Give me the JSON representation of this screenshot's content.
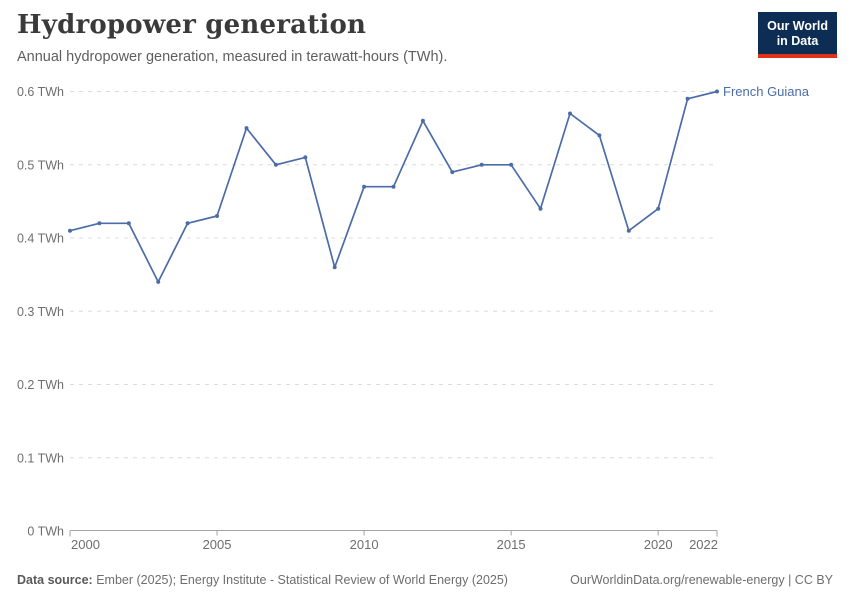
{
  "header": {
    "title": "Hydropower generation",
    "subtitle": "Annual hydropower generation, measured in terawatt-hours (TWh).",
    "logo": {
      "line1": "Our World",
      "line2": "in Data"
    }
  },
  "chart_data": {
    "type": "line",
    "title": "Hydropower generation",
    "subtitle": "Annual hydropower generation, measured in terawatt-hours (TWh).",
    "unit": "TWh",
    "x": [
      2000,
      2001,
      2002,
      2003,
      2004,
      2005,
      2006,
      2007,
      2008,
      2009,
      2010,
      2011,
      2012,
      2013,
      2014,
      2015,
      2016,
      2017,
      2018,
      2019,
      2020,
      2021,
      2022
    ],
    "series": [
      {
        "name": "French Guiana",
        "color": "#4b6ca8",
        "values": [
          0.41,
          0.42,
          0.42,
          0.34,
          0.42,
          0.43,
          0.55,
          0.5,
          0.51,
          0.36,
          0.47,
          0.47,
          0.56,
          0.49,
          0.5,
          0.5,
          0.44,
          0.57,
          0.54,
          0.41,
          0.44,
          0.59,
          0.6
        ]
      }
    ],
    "xlim": [
      2000,
      2022
    ],
    "ylim": [
      0,
      0.6
    ],
    "x_ticks": [
      2000,
      2005,
      2010,
      2015,
      2020,
      2022
    ],
    "y_ticks": [
      {
        "value": 0.0,
        "label": "0 TWh"
      },
      {
        "value": 0.1,
        "label": "0.1 TWh"
      },
      {
        "value": 0.2,
        "label": "0.2 TWh"
      },
      {
        "value": 0.3,
        "label": "0.3 TWh"
      },
      {
        "value": 0.4,
        "label": "0.4 TWh"
      },
      {
        "value": 0.5,
        "label": "0.5 TWh"
      },
      {
        "value": 0.6,
        "label": "0.6 TWh"
      },
      {
        "value": 0.0,
        "label": "0 TWh"
      }
    ],
    "grid": "horizontal-dashed",
    "legend_position": "end-of-line-label",
    "colors": {
      "line": "#4b6ca8",
      "grid": "#dcdcdc",
      "axis": "#a3a3a3",
      "tick_text": "#6e6e6e"
    }
  },
  "footer": {
    "source_label": "Data source:",
    "source_text": "Ember (2025); Energy Institute - Statistical Review of World Energy (2025)",
    "attribution": "OurWorldinData.org/renewable-energy | CC BY"
  }
}
